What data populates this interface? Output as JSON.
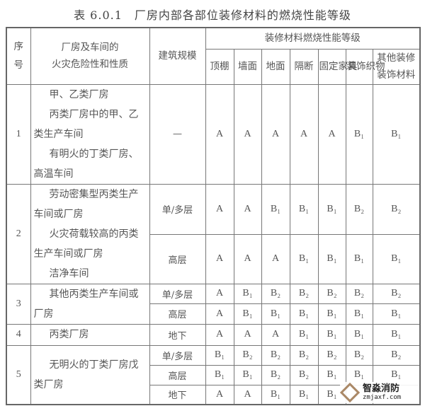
{
  "title": "表 6.0.1　厂房内部各部位装修材料的燃烧性能等级",
  "headers": {
    "no": "序号",
    "nature": [
      "厂房及车间的",
      "火灾危险性和性质"
    ],
    "scale": "建筑规模",
    "group": "装修材料燃烧性能等级",
    "cols": [
      "顶棚",
      "墙面",
      "地面",
      "隔断",
      "固定家具",
      "装饰织物",
      "其他装修装饰材料"
    ]
  },
  "rows": [
    {
      "no": "1",
      "desc": [
        "甲、乙类厂房",
        "丙类厂房中的甲、乙",
        "类生产车间",
        "有明火的丁类厂房、",
        "高温车间"
      ],
      "sub": [
        {
          "scale": "—",
          "grades": [
            "A",
            "A",
            "A",
            "A",
            "A",
            "B₁",
            "B₁"
          ]
        }
      ]
    },
    {
      "no": "2",
      "desc": [
        "劳动密集型丙类生产",
        "车间或厂房",
        "火灾荷载较高的丙类",
        "生产车间或厂房",
        "洁净车间"
      ],
      "sub": [
        {
          "scale": "单/多层",
          "grades": [
            "A",
            "A",
            "B₁",
            "B₁",
            "B₁",
            "B₂",
            "B₂"
          ]
        },
        {
          "scale": "高层",
          "grades": [
            "A",
            "A",
            "A",
            "B₁",
            "B₁",
            "B₁",
            "B₁"
          ]
        }
      ]
    },
    {
      "no": "3",
      "desc": [
        "其他丙类生产车间或",
        "厂房"
      ],
      "sub": [
        {
          "scale": "单/多层",
          "grades": [
            "A",
            "B₁",
            "B₂",
            "B₂",
            "B₂",
            "B₂",
            "B₂"
          ]
        },
        {
          "scale": "高层",
          "grades": [
            "A",
            "B₁",
            "B₁",
            "B₁",
            "B₁",
            "B₁",
            "B₁"
          ]
        }
      ]
    },
    {
      "no": "4",
      "desc": [
        "丙类厂房"
      ],
      "sub": [
        {
          "scale": "地下",
          "grades": [
            "A",
            "A",
            "A",
            "B₁",
            "B₁",
            "B₁",
            "B₁"
          ]
        }
      ]
    },
    {
      "no": "5",
      "desc": [
        "无明火的丁类厂房戊",
        "类厂房"
      ],
      "sub": [
        {
          "scale": "单/多层",
          "grades": [
            "B₁",
            "B₂",
            "B₂",
            "B₂",
            "B₂",
            "B₂",
            "B₂"
          ]
        },
        {
          "scale": "高层",
          "grades": [
            "B₁",
            "B₁",
            "B₂",
            "B₂",
            "B₁",
            "B₁",
            "B₁"
          ]
        },
        {
          "scale": "地下",
          "grades": [
            "A",
            "A",
            "B₁",
            "B₁",
            "B₁",
            "",
            ""
          ]
        }
      ]
    }
  ],
  "watermark": {
    "name": "智淼消防",
    "url": "zmjaxf.com"
  }
}
